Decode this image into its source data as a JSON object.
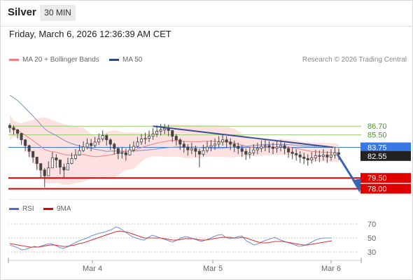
{
  "header": {
    "title": "Silver",
    "interval": "30 MIN"
  },
  "timestamp": "Friday, March 6, 2026 12:36:39 AM CET",
  "legend_top": [
    {
      "label": "MA 20 + Bollinger Bands",
      "color": "#f08080"
    },
    {
      "label": "MA 50",
      "color": "#2e4a8c"
    }
  ],
  "credit": "Research © 2026 Trading Central",
  "legend_rsi": [
    {
      "label": "RSI",
      "color": "#4a6fd0"
    },
    {
      "label": "9MA",
      "color": "#e00000"
    }
  ],
  "colors": {
    "candle": "#444444",
    "bb_fill": "#fde1e1",
    "ma20": "#f08080",
    "ma50": "#7f8fbf",
    "resistance": "#9acd6e",
    "current": "#3b78e7",
    "support": "#e00000",
    "trendline": "#3b4f94",
    "forecast": "#3666b0",
    "rsi": "#6f8fd8",
    "rsi_ma": "#d83030"
  },
  "chart_data": [
    {
      "type": "candlestick",
      "ylim": [
        76.5,
        95
      ],
      "x_ticks": [
        "Mar 4",
        "Mar 5",
        "Mar 6"
      ],
      "levels": [
        {
          "label": "86.70",
          "value": 86.7,
          "kind": "resistance"
        },
        {
          "label": "85.50",
          "value": 85.5,
          "kind": "resistance"
        },
        {
          "label": "83.75",
          "value": 83.75,
          "kind": "current"
        },
        {
          "label": "82.55",
          "value": 82.55,
          "kind": "price"
        },
        {
          "label": "79.50",
          "value": 79.5,
          "kind": "support"
        },
        {
          "label": "78.00",
          "value": 78.0,
          "kind": "support"
        }
      ],
      "close": [
        86.5,
        86.2,
        85.7,
        84.8,
        84.0,
        83.2,
        82.4,
        81.5,
        80.6,
        79.8,
        80.9,
        82.3,
        82.0,
        81.0,
        80.6,
        81.5,
        82.2,
        82.7,
        83.3,
        83.8,
        84.3,
        84.0,
        84.5,
        84.9,
        85.4,
        84.8,
        84.2,
        83.6,
        82.9,
        83.0,
        82.7,
        83.4,
        83.9,
        84.5,
        84.9,
        85.0,
        85.3,
        85.6,
        86.0,
        86.2,
        86.4,
        86.1,
        85.3,
        84.8,
        84.2,
        83.8,
        83.4,
        83.6,
        83.2,
        82.8,
        83.3,
        83.8,
        84.0,
        84.2,
        84.5,
        84.8,
        84.5,
        84.2,
        83.9,
        83.6,
        83.2,
        82.8,
        83.0,
        83.4,
        83.6,
        83.9,
        84.0,
        83.8,
        83.6,
        83.8,
        84.0,
        83.6,
        83.1,
        82.9,
        82.7,
        82.4,
        82.2,
        82.0,
        82.3,
        82.6,
        82.5,
        82.7,
        82.4,
        82.7,
        83.0,
        82.8
      ],
      "high": [
        87.1,
        86.8,
        86.3,
        85.6,
        84.9,
        84.1,
        83.2,
        82.4,
        81.5,
        80.9,
        81.8,
        83.1,
        82.8,
        81.8,
        81.5,
        82.3,
        83.0,
        83.5,
        84.1,
        84.6,
        85.0,
        84.9,
        85.2,
        85.7,
        86.1,
        85.6,
        85.0,
        84.4,
        83.7,
        83.8,
        83.6,
        84.2,
        84.6,
        85.2,
        85.6,
        85.8,
        86.1,
        86.4,
        86.8,
        87.0,
        87.0,
        86.9,
        86.1,
        85.6,
        85.0,
        84.6,
        84.2,
        84.4,
        84.0,
        83.6,
        84.1,
        84.6,
        84.8,
        85.0,
        85.3,
        85.6,
        85.3,
        85.0,
        84.7,
        84.4,
        84.0,
        83.6,
        83.8,
        84.2,
        84.4,
        84.7,
        84.8,
        84.6,
        84.4,
        84.6,
        84.8,
        84.4,
        83.9,
        83.7,
        83.5,
        83.2,
        83.0,
        82.8,
        83.1,
        83.4,
        83.3,
        83.5,
        83.2,
        83.5,
        83.8,
        83.6
      ],
      "low": [
        85.8,
        85.5,
        85.0,
        84.1,
        83.2,
        82.4,
        81.6,
        80.6,
        79.4,
        78.2,
        79.8,
        81.5,
        80.9,
        80.0,
        79.6,
        80.7,
        81.4,
        82.0,
        82.6,
        83.1,
        83.5,
        83.2,
        83.7,
        84.1,
        84.6,
        84.0,
        83.4,
        82.8,
        82.1,
        82.2,
        81.9,
        82.6,
        83.1,
        83.7,
        84.1,
        84.2,
        84.5,
        84.8,
        85.2,
        85.4,
        85.6,
        85.3,
        84.5,
        84.0,
        83.4,
        83.0,
        82.6,
        82.8,
        82.4,
        81.0,
        82.5,
        83.0,
        83.2,
        83.4,
        83.7,
        84.0,
        83.7,
        83.4,
        83.1,
        82.8,
        82.4,
        82.0,
        82.2,
        82.6,
        82.8,
        83.1,
        83.2,
        83.0,
        82.8,
        83.0,
        83.2,
        82.8,
        82.3,
        82.1,
        81.9,
        81.6,
        81.4,
        81.2,
        81.5,
        81.8,
        81.7,
        81.9,
        81.6,
        81.9,
        82.2,
        82.0
      ]
    },
    {
      "type": "line",
      "ylim": [
        22,
        78
      ],
      "y_ticks": [
        70,
        50,
        30
      ],
      "series": [
        {
          "name": "RSI",
          "values": [
            40,
            38,
            36,
            33,
            34,
            36,
            38,
            37,
            39,
            41,
            42,
            40,
            37,
            35,
            37,
            40,
            43,
            46,
            48,
            50,
            53,
            55,
            57,
            58,
            60,
            62,
            66,
            64,
            60,
            56,
            52,
            50,
            48,
            47,
            51,
            54,
            52,
            50,
            48,
            46,
            44,
            47,
            50,
            52,
            51,
            49,
            47,
            45,
            47,
            49,
            52,
            54,
            55,
            51,
            49,
            50,
            52,
            53,
            46,
            43,
            40,
            42,
            45,
            47,
            49,
            51,
            48,
            46,
            44,
            42,
            40,
            38,
            39,
            41,
            44,
            47,
            49,
            50,
            50,
            50
          ]
        },
        {
          "name": "9MA",
          "values": [
            42,
            41,
            40,
            39,
            38,
            37,
            37,
            37,
            38,
            39,
            40,
            40,
            39,
            38,
            38,
            39,
            40,
            42,
            43,
            45,
            47,
            49,
            51,
            53,
            55,
            57,
            59,
            60,
            59,
            58,
            56,
            54,
            52,
            50,
            50,
            50,
            50,
            50,
            49,
            48,
            47,
            47,
            48,
            49,
            49,
            49,
            48,
            47,
            47,
            48,
            49,
            50,
            51,
            51,
            51,
            50,
            50,
            51,
            50,
            48,
            46,
            44,
            43,
            43,
            44,
            45,
            45,
            45,
            44,
            43,
            42,
            41,
            40,
            40,
            41,
            42,
            43,
            44,
            45,
            46
          ]
        }
      ]
    }
  ]
}
